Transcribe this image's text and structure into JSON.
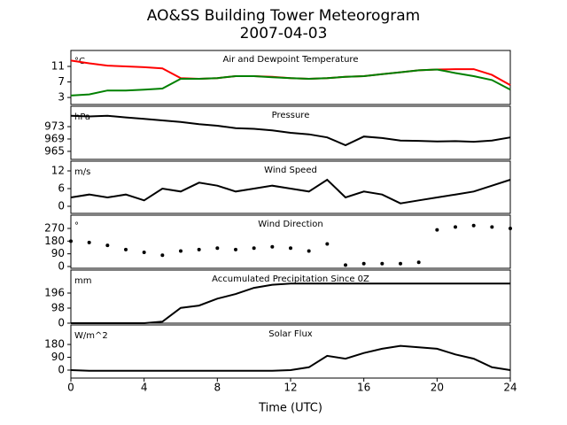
{
  "title": "AO&SS Building Tower Meteorogram",
  "subtitle": "2007-04-03",
  "x_axis": {
    "label": "Time (UTC)",
    "xlim": [
      0,
      24
    ],
    "xticks": [
      0,
      4,
      8,
      12,
      16,
      20,
      24
    ]
  },
  "chart_data": [
    {
      "type": "line",
      "title": "Air and Dewpoint Temperature",
      "unit": "°C",
      "x": [
        0,
        1,
        2,
        3,
        4,
        5,
        6,
        7,
        8,
        9,
        10,
        11,
        12,
        13,
        14,
        15,
        16,
        17,
        18,
        19,
        20,
        21,
        22,
        23,
        24
      ],
      "series": [
        {
          "name": "Air Temperature",
          "color": "#ff0000",
          "values": [
            12.5,
            11.8,
            11.2,
            11,
            10.8,
            10.5,
            8,
            7.8,
            8,
            8.5,
            8.5,
            8.3,
            8,
            7.8,
            8,
            8.3,
            8.5,
            9,
            9.5,
            10,
            10.2,
            10.3,
            10.3,
            8.8,
            6.2
          ]
        },
        {
          "name": "Dewpoint",
          "color": "#008000",
          "values": [
            3.5,
            3.8,
            4.8,
            4.8,
            5,
            5.3,
            7.8,
            7.8,
            8,
            8.5,
            8.5,
            8.2,
            8,
            7.8,
            8,
            8.3,
            8.5,
            9,
            9.5,
            10,
            10.2,
            9.3,
            8.5,
            7.5,
            5
          ]
        }
      ],
      "ylim": [
        1.2,
        15.1
      ],
      "yticks": [
        3,
        7,
        11
      ]
    },
    {
      "type": "line",
      "title": "Pressure",
      "unit": "hPa",
      "x": [
        0,
        1,
        2,
        3,
        4,
        5,
        6,
        7,
        8,
        9,
        10,
        11,
        12,
        13,
        14,
        15,
        16,
        17,
        18,
        19,
        20,
        21,
        22,
        23,
        24
      ],
      "series": [
        {
          "name": "Pressure",
          "color": "#000000",
          "values": [
            976.5,
            976.3,
            976.5,
            976,
            975.5,
            975,
            974.5,
            973.8,
            973.3,
            972.5,
            972.3,
            971.8,
            971,
            970.5,
            969.5,
            967,
            969.8,
            969.3,
            968.5,
            968.4,
            968.2,
            968.3,
            968.1,
            968.5,
            969.5
          ]
        }
      ],
      "ylim": [
        962.4,
        979.6
      ],
      "yticks": [
        965,
        969,
        973
      ]
    },
    {
      "type": "line",
      "title": "Wind Speed",
      "unit": "m/s",
      "x": [
        0,
        1,
        2,
        3,
        4,
        5,
        6,
        7,
        8,
        9,
        10,
        11,
        12,
        13,
        14,
        15,
        16,
        17,
        18,
        19,
        20,
        21,
        22,
        23,
        24
      ],
      "series": [
        {
          "name": "Wind Speed",
          "color": "#000000",
          "values": [
            3,
            4,
            3,
            4,
            2,
            6,
            5,
            8,
            7,
            5,
            6,
            7,
            6,
            5,
            9,
            3,
            5,
            4,
            1,
            2,
            3,
            4,
            5,
            7,
            9
          ]
        }
      ],
      "ylim": [
        -2.4,
        15.3
      ],
      "yticks": [
        0,
        6,
        12
      ]
    },
    {
      "type": "scatter",
      "title": "Wind Direction",
      "unit": "°",
      "x": [
        0,
        1,
        2,
        3,
        4,
        5,
        6,
        7,
        8,
        9,
        10,
        11,
        12,
        13,
        14,
        15,
        16,
        17,
        18,
        19,
        20,
        21,
        22,
        23,
        24
      ],
      "series": [
        {
          "name": "Wind Direction",
          "color": "#000000",
          "values": [
            180,
            170,
            150,
            120,
            100,
            80,
            110,
            120,
            130,
            120,
            130,
            140,
            130,
            110,
            160,
            10,
            20,
            20,
            20,
            30,
            260,
            280,
            290,
            280,
            270
          ]
        }
      ],
      "ylim": [
        -12.6,
        364
      ],
      "yticks": [
        0,
        90,
        180,
        270
      ]
    },
    {
      "type": "line",
      "title": "Accumulated Precipitation Since 0Z",
      "unit": "mm",
      "x": [
        0,
        1,
        2,
        3,
        4,
        5,
        6,
        7,
        8,
        9,
        10,
        11,
        12,
        13,
        14,
        15,
        16,
        17,
        18,
        19,
        20,
        21,
        22,
        23,
        24
      ],
      "series": [
        {
          "name": "Precipitation",
          "color": "#000000",
          "values": [
            0,
            0,
            0,
            0,
            0,
            10,
            100,
            115,
            160,
            190,
            230,
            250,
            258,
            258,
            258,
            258,
            258,
            258,
            258,
            258,
            258,
            258,
            258,
            258,
            258
          ]
        }
      ],
      "ylim": [
        0,
        346
      ],
      "yticks": [
        0,
        98,
        196
      ]
    },
    {
      "type": "line",
      "title": "Solar Flux",
      "unit": "W/m^2",
      "x": [
        0,
        1,
        2,
        3,
        4,
        5,
        6,
        7,
        8,
        9,
        10,
        11,
        12,
        13,
        14,
        15,
        16,
        17,
        18,
        19,
        20,
        21,
        22,
        23,
        24
      ],
      "series": [
        {
          "name": "Solar Flux",
          "color": "#000000",
          "values": [
            0,
            -5,
            -5,
            -5,
            -5,
            -5,
            -5,
            -5,
            -5,
            -5,
            -5,
            -5,
            0,
            20,
            100,
            80,
            120,
            150,
            170,
            160,
            150,
            110,
            80,
            20,
            0
          ]
        }
      ],
      "ylim": [
        -56,
        317
      ],
      "yticks": [
        0,
        90,
        180
      ]
    }
  ]
}
